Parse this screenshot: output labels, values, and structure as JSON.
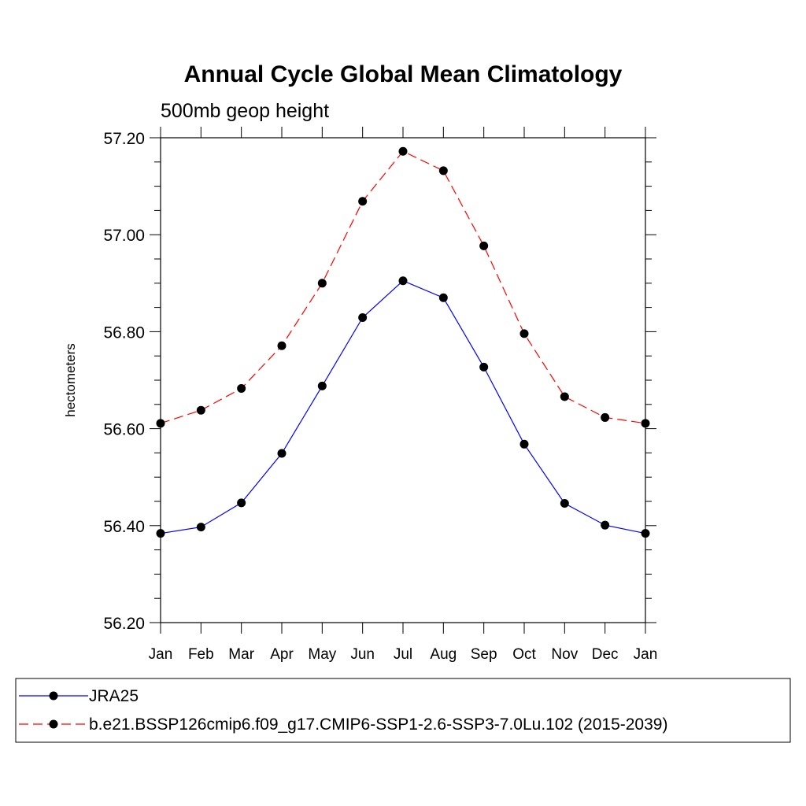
{
  "chart_data": {
    "type": "line",
    "title": "Annual Cycle Global Mean Climatology",
    "subtitle": "500mb geop height",
    "ylabel": "hectometers",
    "xlabel": "",
    "ylim": [
      56.2,
      57.2
    ],
    "yticks": [
      "56.20",
      "56.40",
      "56.60",
      "56.80",
      "57.00",
      "57.20"
    ],
    "categories": [
      "Jan",
      "Feb",
      "Mar",
      "Apr",
      "May",
      "Jun",
      "Jul",
      "Aug",
      "Sep",
      "Oct",
      "Nov",
      "Dec",
      "Jan"
    ],
    "grid": false,
    "legend_position": "bottom",
    "series": [
      {
        "name": "JRA25",
        "color": "#0000ff",
        "line_style": "solid",
        "marker": "filled-circle",
        "values": [
          56.384,
          56.397,
          56.447,
          56.549,
          56.688,
          56.829,
          56.905,
          56.87,
          56.727,
          56.568,
          56.446,
          56.401,
          56.384
        ]
      },
      {
        "name": "b.e21.BSSP126cmip6.f09_g17.CMIP6-SSP1-2.6-SSP3-7.0Lu.102 (2015-2039)",
        "color": "#ff0000",
        "line_style": "dashed",
        "marker": "filled-circle",
        "values": [
          56.611,
          56.638,
          56.683,
          56.771,
          56.9,
          57.069,
          57.172,
          57.132,
          56.977,
          56.796,
          56.666,
          56.623,
          56.611
        ]
      }
    ]
  }
}
